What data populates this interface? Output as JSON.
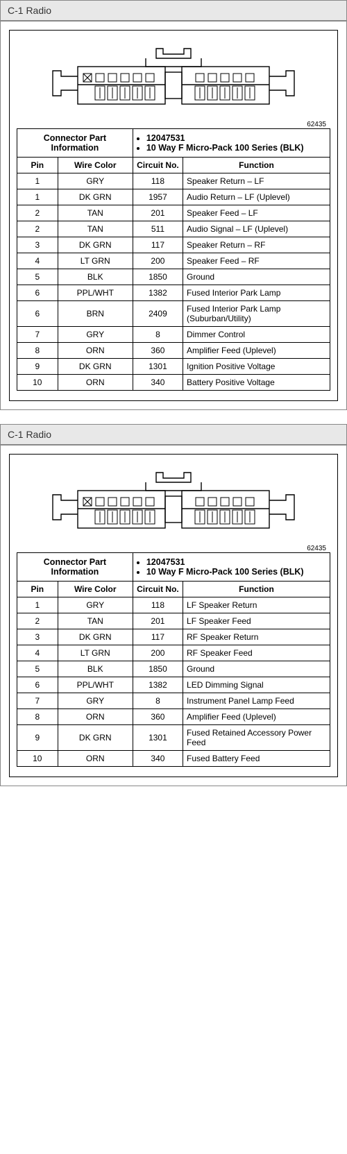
{
  "panels": [
    {
      "title": "C-1 Radio",
      "ref": "62435",
      "info_label": "Connector Part Information",
      "part_no": "12047531",
      "part_desc": "10 Way F Micro-Pack 100 Series (BLK)",
      "columns": {
        "pin": "Pin",
        "wire": "Wire Color",
        "circuit": "Circuit No.",
        "func": "Function"
      },
      "col_widths": {
        "pin": "13%",
        "wire": "24%",
        "circuit": "16%",
        "func": "47%"
      },
      "rows": [
        {
          "pin": "1",
          "wire": "GRY",
          "circuit": "118",
          "func": "Speaker Return – LF"
        },
        {
          "pin": "1",
          "wire": "DK GRN",
          "circuit": "1957",
          "func": "Audio Return – LF (Uplevel)"
        },
        {
          "pin": "2",
          "wire": "TAN",
          "circuit": "201",
          "func": "Speaker Feed – LF"
        },
        {
          "pin": "2",
          "wire": "TAN",
          "circuit": "511",
          "func": "Audio Signal – LF (Uplevel)"
        },
        {
          "pin": "3",
          "wire": "DK GRN",
          "circuit": "117",
          "func": "Speaker Return – RF"
        },
        {
          "pin": "4",
          "wire": "LT GRN",
          "circuit": "200",
          "func": "Speaker Feed – RF"
        },
        {
          "pin": "5",
          "wire": "BLK",
          "circuit": "1850",
          "func": "Ground"
        },
        {
          "pin": "6",
          "wire": "PPL/WHT",
          "circuit": "1382",
          "func": "Fused Interior Park Lamp"
        },
        {
          "pin": "6",
          "wire": "BRN",
          "circuit": "2409",
          "func": "Fused Interior Park Lamp (Suburban/Utility)"
        },
        {
          "pin": "7",
          "wire": "GRY",
          "circuit": "8",
          "func": "Dimmer Control"
        },
        {
          "pin": "8",
          "wire": "ORN",
          "circuit": "360",
          "func": "Amplifier Feed (Uplevel)"
        },
        {
          "pin": "9",
          "wire": "DK GRN",
          "circuit": "1301",
          "func": "Ignition Positive Voltage"
        },
        {
          "pin": "10",
          "wire": "ORN",
          "circuit": "340",
          "func": "Battery Positive Voltage"
        }
      ]
    },
    {
      "title": "C-1 Radio",
      "ref": "62435",
      "info_label": "Connector Part Information",
      "part_no": "12047531",
      "part_desc": "10 Way F Micro-Pack 100 Series (BLK)",
      "columns": {
        "pin": "Pin",
        "wire": "Wire Color",
        "circuit": "Circuit No.",
        "func": "Function"
      },
      "col_widths": {
        "pin": "13%",
        "wire": "24%",
        "circuit": "16%",
        "func": "47%"
      },
      "rows": [
        {
          "pin": "1",
          "wire": "GRY",
          "circuit": "118",
          "func": "LF Speaker Return"
        },
        {
          "pin": "2",
          "wire": "TAN",
          "circuit": "201",
          "func": "LF Speaker Feed"
        },
        {
          "pin": "3",
          "wire": "DK GRN",
          "circuit": "117",
          "func": "RF Speaker Return"
        },
        {
          "pin": "4",
          "wire": "LT GRN",
          "circuit": "200",
          "func": "RF Speaker Feed"
        },
        {
          "pin": "5",
          "wire": "BLK",
          "circuit": "1850",
          "func": "Ground"
        },
        {
          "pin": "6",
          "wire": "PPL/WHT",
          "circuit": "1382",
          "func": "LED Dimming Signal"
        },
        {
          "pin": "7",
          "wire": "GRY",
          "circuit": "8",
          "func": "Instrument Panel Lamp Feed"
        },
        {
          "pin": "8",
          "wire": "ORN",
          "circuit": "360",
          "func": "Amplifier Feed (Uplevel)"
        },
        {
          "pin": "9",
          "wire": "DK GRN",
          "circuit": "1301",
          "func": "Fused Retained Accessory Power Feed"
        },
        {
          "pin": "10",
          "wire": "ORN",
          "circuit": "340",
          "func": "Fused Battery Feed"
        }
      ]
    }
  ],
  "connector_diagram": {
    "stroke": "#000000",
    "fill": "#ffffff",
    "hatch": "#000000"
  }
}
